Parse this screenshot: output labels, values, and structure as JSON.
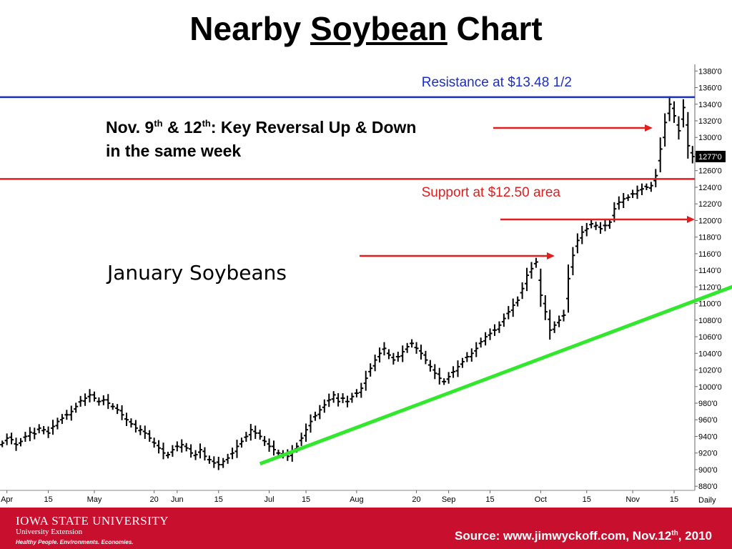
{
  "title": {
    "before": "Nearby ",
    "underlined": "Soybean",
    "after": " Chart"
  },
  "colors": {
    "resistance": "#1a2fc8",
    "support": "#e01e1e",
    "arrow": "#e01e1e",
    "trendline": "#33e62e",
    "footer": "#C8102E"
  },
  "chart_data": {
    "type": "ohlc",
    "title": "January Soybeans",
    "frequency_label": "Daily",
    "y_ticks": [
      "880'0",
      "900'0",
      "920'0",
      "940'0",
      "960'0",
      "980'0",
      "1000'0",
      "1020'0",
      "1040'0",
      "1060'0",
      "1080'0",
      "1100'0",
      "1120'0",
      "1140'0",
      "1160'0",
      "1180'0",
      "1200'0",
      "1220'0",
      "1240'0",
      "1260'0",
      "1280'0",
      "1300'0",
      "1320'0",
      "1340'0",
      "1360'0",
      "1380'0"
    ],
    "ylim": [
      875,
      1388
    ],
    "last_price_label": "1277'0",
    "last_price": 1277,
    "x_ticks": [
      {
        "label": "Apr",
        "bar": 1
      },
      {
        "label": "15",
        "bar": 10
      },
      {
        "label": "May",
        "bar": 20
      },
      {
        "label": "20",
        "bar": 33
      },
      {
        "label": "Jun",
        "bar": 38
      },
      {
        "label": "15",
        "bar": 47
      },
      {
        "label": "Jul",
        "bar": 58
      },
      {
        "label": "15",
        "bar": 66
      },
      {
        "label": "Aug",
        "bar": 77
      },
      {
        "label": "20",
        "bar": 90
      },
      {
        "label": "Sep",
        "bar": 97
      },
      {
        "label": "15",
        "bar": 106
      },
      {
        "label": "Oct",
        "bar": 117
      },
      {
        "label": "15",
        "bar": 127
      },
      {
        "label": "Nov",
        "bar": 137
      },
      {
        "label": "15",
        "bar": 146
      }
    ],
    "closes": [
      932,
      938,
      936,
      930,
      934,
      940,
      945,
      943,
      950,
      948,
      944,
      952,
      958,
      962,
      966,
      970,
      976,
      983,
      986,
      990,
      986,
      982,
      984,
      980,
      976,
      972,
      966,
      960,
      955,
      950,
      948,
      944,
      938,
      932,
      926,
      920,
      918,
      924,
      928,
      930,
      926,
      920,
      918,
      924,
      916,
      912,
      908,
      906,
      910,
      914,
      920,
      928,
      934,
      940,
      948,
      944,
      940,
      934,
      928,
      924,
      920,
      918,
      916,
      922,
      928,
      938,
      948,
      958,
      965,
      972,
      978,
      984,
      990,
      982,
      986,
      982,
      988,
      992,
      998,
      1010,
      1022,
      1032,
      1040,
      1046,
      1038,
      1032,
      1036,
      1042,
      1048,
      1052,
      1046,
      1040,
      1032,
      1024,
      1016,
      1010,
      1006,
      1012,
      1018,
      1024,
      1030,
      1036,
      1040,
      1046,
      1054,
      1060,
      1064,
      1068,
      1074,
      1082,
      1090,
      1098,
      1104,
      1118,
      1134,
      1142,
      1150,
      1110,
      1090,
      1068,
      1074,
      1080,
      1086,
      1130,
      1158,
      1176,
      1186,
      1190,
      1196,
      1194,
      1190,
      1194,
      1198,
      1214,
      1222,
      1226,
      1228,
      1232,
      1236,
      1238,
      1240,
      1242,
      1254,
      1286,
      1318,
      1340,
      1326,
      1308,
      1336,
      1290,
      1277
    ],
    "support": {
      "value": 1250,
      "label": "Support at $12.50 area"
    },
    "resistance": {
      "value": 1348.5,
      "label": "Resistance at $13.48 1/2"
    },
    "trendline": {
      "from": {
        "bar": 56,
        "price": 907
      },
      "to": {
        "bar": 160,
        "price": 1123
      }
    },
    "legend": "none",
    "grid": false
  },
  "annotations": {
    "reversal_line1_a": "Nov. 9",
    "reversal_line1_sup1": "th",
    "reversal_line1_b": " & 12",
    "reversal_line1_sup2": "th",
    "reversal_line1_c": ": Key Reversal Up & Down",
    "reversal_line2": "in the same week"
  },
  "footer": {
    "logo_name": "IOWA STATE UNIVERSITY",
    "logo_ext": "University Extension",
    "logo_tag": "Healthy People. Environments. Economies.",
    "source_a": "Source:  www.jimwyckoff.com, Nov.12",
    "source_sup": "th",
    "source_b": ", 2010"
  }
}
